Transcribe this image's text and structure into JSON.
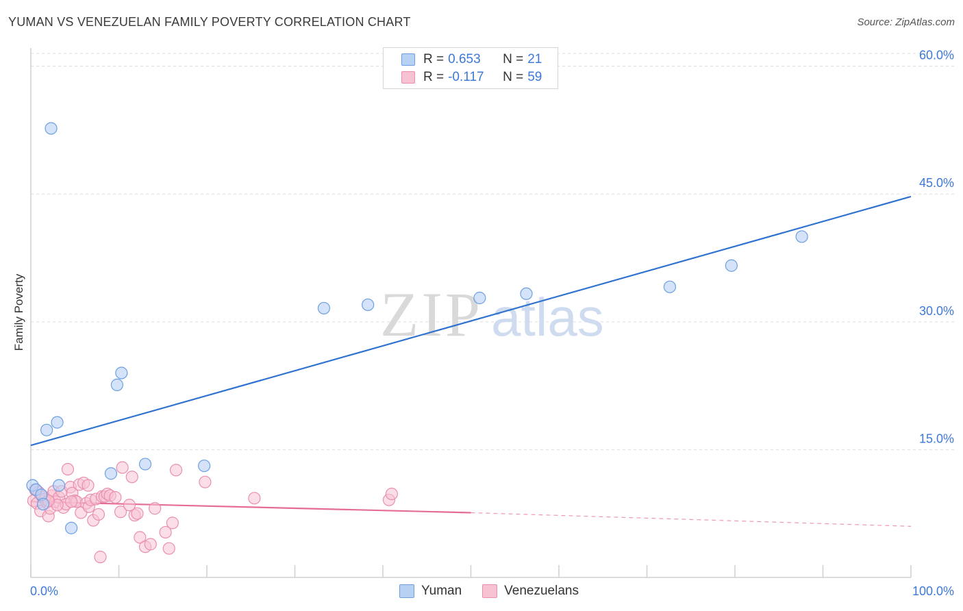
{
  "title": "YUMAN VS VENEZUELAN FAMILY POVERTY CORRELATION CHART",
  "source": "Source: ZipAtlas.com",
  "watermark": {
    "zip": "ZIP",
    "atlas": "atlas"
  },
  "colors": {
    "yuman_fill": "#b7d1f5",
    "yuman_stroke": "#6c9fe0",
    "yuman_line": "#2f72cf",
    "ven_fill": "#f7c3d3",
    "ven_stroke": "#e98fae",
    "ven_line": "#e56c97",
    "axis_label": "#3c78d8",
    "grid": "#dcdcdc"
  },
  "legend_top": [
    {
      "r_label": "R =",
      "r_value": "0.653",
      "n_label": "N =",
      "n_value": "21"
    },
    {
      "r_label": "R =",
      "r_value": "-0.117",
      "n_label": "N =",
      "n_value": "59"
    }
  ],
  "legend_bottom": [
    "Yuman",
    "Venezuelans"
  ],
  "chart_data": {
    "type": "scatter",
    "title": "YUMAN VS VENEZUELAN FAMILY POVERTY CORRELATION CHART",
    "xlabel": "",
    "ylabel": "Family Poverty",
    "xlim": [
      0,
      100
    ],
    "ylim": [
      0,
      61.5
    ],
    "x_tick_labels": [
      "0.0%",
      "100.0%"
    ],
    "y_ticks": [
      15,
      30,
      45,
      60
    ],
    "y_tick_labels": [
      "15.0%",
      "30.0%",
      "45.0%",
      "60.0%"
    ],
    "grid": true,
    "series": [
      {
        "name": "Yuman",
        "points": [
          [
            0.2,
            10.8
          ],
          [
            0.6,
            10.3
          ],
          [
            1.2,
            9.7
          ],
          [
            1.8,
            17.3
          ],
          [
            2.3,
            52.7
          ],
          [
            3.0,
            18.2
          ],
          [
            3.2,
            10.8
          ],
          [
            4.6,
            5.8
          ],
          [
            9.1,
            12.2
          ],
          [
            9.8,
            22.6
          ],
          [
            10.3,
            24.0
          ],
          [
            13.0,
            13.3
          ],
          [
            19.7,
            13.1
          ],
          [
            33.3,
            31.6
          ],
          [
            38.3,
            32.0
          ],
          [
            51.0,
            32.8
          ],
          [
            56.3,
            33.3
          ],
          [
            72.6,
            34.1
          ],
          [
            79.6,
            36.6
          ],
          [
            87.6,
            40.0
          ],
          [
            1.4,
            8.6
          ]
        ],
        "trendline": {
          "x": [
            0,
            100
          ],
          "y": [
            15.5,
            44.7
          ],
          "style": "solid"
        }
      },
      {
        "name": "Venezuelans",
        "points": [
          [
            0.3,
            9.0
          ],
          [
            0.5,
            10.3
          ],
          [
            0.7,
            8.7
          ],
          [
            0.9,
            10.0
          ],
          [
            1.1,
            7.8
          ],
          [
            1.3,
            9.5
          ],
          [
            1.6,
            9.2
          ],
          [
            1.8,
            8.8
          ],
          [
            2.0,
            7.2
          ],
          [
            2.2,
            8.1
          ],
          [
            2.4,
            9.6
          ],
          [
            2.6,
            10.1
          ],
          [
            2.8,
            8.9
          ],
          [
            3.2,
            9.4
          ],
          [
            3.5,
            10.1
          ],
          [
            3.7,
            8.2
          ],
          [
            4.0,
            8.6
          ],
          [
            4.2,
            12.7
          ],
          [
            4.5,
            10.6
          ],
          [
            4.7,
            9.9
          ],
          [
            5.0,
            9.0
          ],
          [
            5.2,
            8.9
          ],
          [
            5.5,
            10.9
          ],
          [
            5.7,
            7.6
          ],
          [
            6.0,
            11.1
          ],
          [
            6.3,
            8.7
          ],
          [
            6.6,
            8.3
          ],
          [
            6.8,
            9.1
          ],
          [
            7.1,
            6.7
          ],
          [
            7.4,
            9.2
          ],
          [
            7.7,
            7.4
          ],
          [
            7.9,
            2.4
          ],
          [
            8.1,
            9.5
          ],
          [
            8.4,
            9.5
          ],
          [
            8.7,
            9.8
          ],
          [
            9.0,
            9.6
          ],
          [
            10.2,
            7.7
          ],
          [
            10.4,
            12.9
          ],
          [
            11.2,
            8.5
          ],
          [
            11.5,
            11.8
          ],
          [
            11.8,
            7.3
          ],
          [
            12.1,
            7.5
          ],
          [
            12.4,
            4.7
          ],
          [
            13.0,
            3.6
          ],
          [
            13.6,
            3.9
          ],
          [
            14.1,
            8.1
          ],
          [
            15.3,
            5.3
          ],
          [
            15.7,
            3.4
          ],
          [
            16.1,
            6.4
          ],
          [
            16.5,
            12.6
          ],
          [
            19.8,
            11.2
          ],
          [
            25.4,
            9.3
          ],
          [
            40.7,
            9.1
          ],
          [
            41.0,
            9.8
          ],
          [
            3.0,
            8.5
          ],
          [
            6.5,
            10.8
          ],
          [
            2.0,
            9.0
          ],
          [
            9.6,
            9.4
          ],
          [
            4.6,
            8.9
          ]
        ],
        "trendline": {
          "x": [
            0,
            50
          ],
          "y": [
            8.9,
            7.6
          ],
          "dashed_extension": {
            "x": [
              50,
              100
            ],
            "y": [
              7.6,
              6.0
            ]
          }
        }
      }
    ]
  }
}
